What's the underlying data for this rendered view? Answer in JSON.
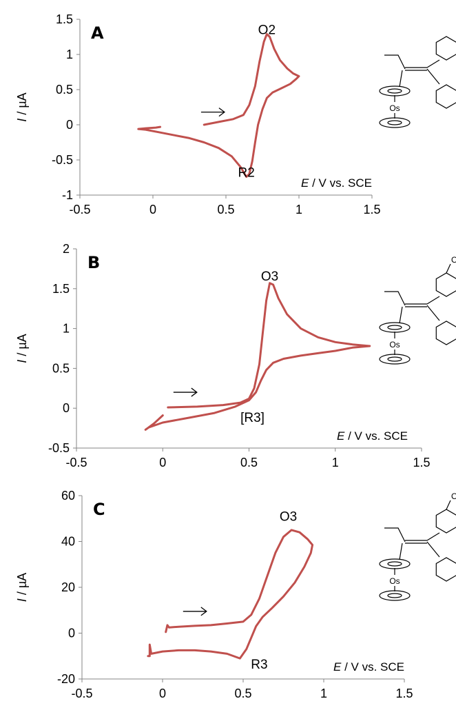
{
  "chart_data": [
    {
      "type": "line",
      "panel_label": "A",
      "xlabel_italic": "E",
      "xlabel_rest": " / V vs. SCE",
      "ylabel_italic": "I",
      "ylabel_rest": " / µA",
      "xlim": [
        -0.5,
        1.5
      ],
      "ylim": [
        -1,
        1.5
      ],
      "x_ticks": [
        "-0.5",
        "0",
        "0.5",
        "1",
        "1.5"
      ],
      "y_ticks": [
        "-1",
        "-0.5",
        "0",
        "0.5",
        "1",
        "1.5"
      ],
      "y_tick_values": [
        -1,
        -0.5,
        0,
        0.5,
        1,
        1.5
      ],
      "color": "#c0504d",
      "peak_labels": [
        {
          "text": "O2",
          "x": 0.78,
          "y": 1.29
        },
        {
          "text": "R2",
          "x": 0.64,
          "y": -0.74
        }
      ],
      "arrow_at": {
        "x": 0.41,
        "y": 0.18
      },
      "molecule_substituent": "",
      "molecule_metal": "Os",
      "series": [
        {
          "x": [
            0.35,
            0.45,
            0.55,
            0.62,
            0.66,
            0.7,
            0.73,
            0.76,
            0.78,
            0.8,
            0.83,
            0.87,
            0.92,
            0.96,
            1.0,
            0.98,
            0.94,
            0.88,
            0.82,
            0.78,
            0.75,
            0.72,
            0.7,
            0.68,
            0.66,
            0.64,
            0.6,
            0.54,
            0.45,
            0.35,
            0.25,
            0.15,
            0.05,
            -0.05,
            -0.1,
            -0.05,
            0.02,
            0.05
          ],
          "y": [
            0.0,
            0.04,
            0.08,
            0.14,
            0.28,
            0.55,
            0.9,
            1.18,
            1.29,
            1.25,
            1.08,
            0.92,
            0.8,
            0.73,
            0.69,
            0.65,
            0.58,
            0.52,
            0.46,
            0.38,
            0.22,
            0.0,
            -0.25,
            -0.52,
            -0.7,
            -0.74,
            -0.6,
            -0.45,
            -0.33,
            -0.25,
            -0.19,
            -0.15,
            -0.11,
            -0.07,
            -0.06,
            -0.05,
            -0.04,
            -0.03
          ]
        }
      ]
    },
    {
      "type": "line",
      "panel_label": "B",
      "xlabel_italic": "E",
      "xlabel_rest": " / V vs. SCE",
      "ylabel_italic": "I",
      "ylabel_rest": " / µA",
      "xlim": [
        -0.5,
        1.5
      ],
      "ylim": [
        -0.5,
        2
      ],
      "x_ticks": [
        "-0.5",
        "0",
        "0.5",
        "1",
        "1.5"
      ],
      "y_ticks": [
        "-0.5",
        "0",
        "0.5",
        "1",
        "1.5",
        "2"
      ],
      "y_tick_values": [
        -0.5,
        0,
        0.5,
        1,
        1.5,
        2
      ],
      "color": "#c0504d",
      "peak_labels": [
        {
          "text": "O3",
          "x": 0.62,
          "y": 1.6
        },
        {
          "text": "[R3]",
          "x": 0.52,
          "y": -0.17
        }
      ],
      "arrow_at": {
        "x": 0.13,
        "y": 0.2
      },
      "molecule_substituent": "OH",
      "molecule_metal": "Os",
      "series": [
        {
          "x": [
            0.03,
            0.2,
            0.35,
            0.45,
            0.5,
            0.53,
            0.56,
            0.58,
            0.6,
            0.62,
            0.64,
            0.67,
            0.72,
            0.8,
            0.9,
            1.0,
            1.1,
            1.2,
            1.1,
            1.0,
            0.9,
            0.8,
            0.7,
            0.64,
            0.6,
            0.57,
            0.54,
            0.5,
            0.42,
            0.3,
            0.15,
            0.0,
            -0.08,
            -0.1,
            -0.05,
            0.0
          ],
          "y": [
            0.01,
            0.02,
            0.04,
            0.07,
            0.12,
            0.25,
            0.55,
            0.95,
            1.35,
            1.57,
            1.55,
            1.38,
            1.18,
            1.0,
            0.89,
            0.83,
            0.8,
            0.78,
            0.76,
            0.72,
            0.69,
            0.66,
            0.62,
            0.57,
            0.48,
            0.35,
            0.2,
            0.1,
            0.02,
            -0.06,
            -0.12,
            -0.18,
            -0.24,
            -0.27,
            -0.19,
            -0.09
          ]
        }
      ]
    },
    {
      "type": "line",
      "panel_label": "C",
      "xlabel_italic": "E",
      "xlabel_rest": " / V vs. SCE",
      "ylabel_italic": "I",
      "ylabel_rest": " / µA",
      "xlim": [
        -0.5,
        1.5
      ],
      "ylim": [
        -20,
        60
      ],
      "x_ticks": [
        "-0.5",
        "0",
        "0.5",
        "1",
        "1.5"
      ],
      "y_ticks": [
        "-20",
        "0",
        "20",
        "40",
        "60"
      ],
      "y_tick_values": [
        -20,
        0,
        20,
        40,
        60
      ],
      "color": "#c0504d",
      "peak_labels": [
        {
          "text": "O3",
          "x": 0.78,
          "y": 49
        },
        {
          "text": "R3",
          "x": 0.6,
          "y": -15.5
        }
      ],
      "arrow_at": {
        "x": 0.2,
        "y": 9.5
      },
      "molecule_substituent": "OH",
      "molecule_metal": "Os",
      "series": [
        {
          "x": [
            0.02,
            0.03,
            0.04,
            0.1,
            0.2,
            0.3,
            0.4,
            0.5,
            0.55,
            0.6,
            0.65,
            0.7,
            0.75,
            0.8,
            0.85,
            0.9,
            0.93,
            0.92,
            0.88,
            0.82,
            0.75,
            0.68,
            0.62,
            0.58,
            0.55,
            0.52,
            0.48,
            0.4,
            0.3,
            0.2,
            0.1,
            0.0,
            -0.07,
            -0.08,
            -0.08,
            -0.09
          ],
          "y": [
            0.5,
            3.5,
            2.5,
            2.8,
            3.2,
            3.5,
            4.2,
            5.0,
            8.0,
            15.0,
            25.0,
            35.0,
            42.0,
            45.0,
            44.0,
            41.0,
            38.5,
            35.0,
            29.0,
            22.0,
            16.0,
            11.0,
            7.0,
            3.0,
            -2.0,
            -7.0,
            -11.0,
            -9.0,
            -8.0,
            -7.5,
            -7.5,
            -8.0,
            -9.0,
            -5.0,
            -10.0,
            -10.0
          ]
        }
      ]
    }
  ]
}
